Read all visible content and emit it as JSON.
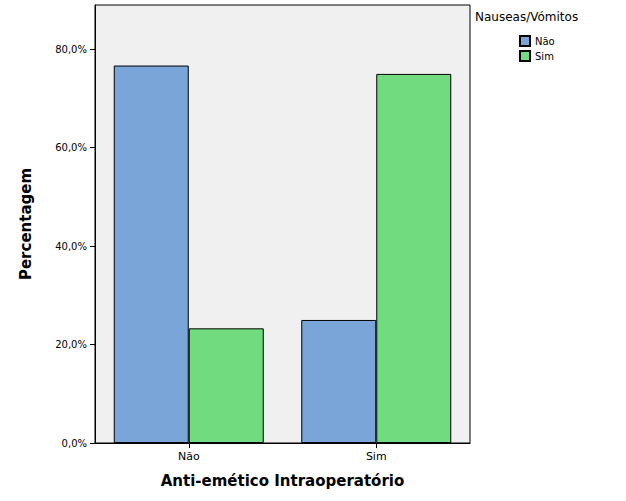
{
  "chart_data": {
    "type": "bar",
    "x_label": "Anti-emético Intraoperatório",
    "y_label": "Percentagem",
    "legend_title": "Nauseas/Vómitos",
    "categories": [
      "Não",
      "Sim"
    ],
    "series": [
      {
        "name": "Não",
        "color": "#79a5d8",
        "values": [
          76.7,
          25.0
        ]
      },
      {
        "name": "Sim",
        "color": "#70dc7f",
        "values": [
          23.3,
          75.0
        ]
      }
    ],
    "ylim": [
      0,
      89
    ],
    "yticks": [
      {
        "value": 0,
        "label": "0,0%"
      },
      {
        "value": 20,
        "label": "20,0%"
      },
      {
        "value": 40,
        "label": "40,0%"
      },
      {
        "value": 60,
        "label": "60,0%"
      },
      {
        "value": 80,
        "label": "80,0%"
      }
    ],
    "grid": false,
    "legend": "right"
  }
}
